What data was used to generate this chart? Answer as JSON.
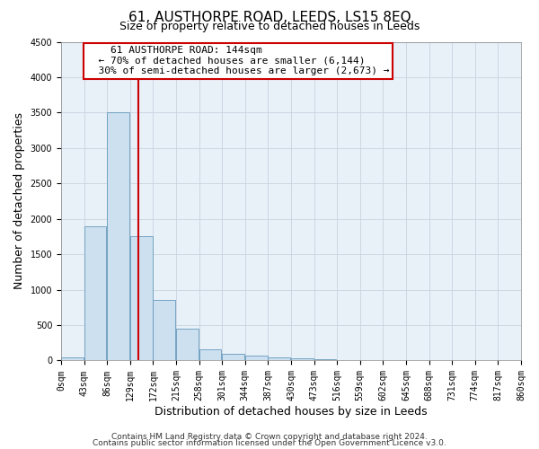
{
  "title": "61, AUSTHORPE ROAD, LEEDS, LS15 8EQ",
  "subtitle": "Size of property relative to detached houses in Leeds",
  "xlabel": "Distribution of detached houses by size in Leeds",
  "ylabel": "Number of detached properties",
  "footer1": "Contains HM Land Registry data © Crown copyright and database right 2024.",
  "footer2": "Contains public sector information licensed under the Open Government Licence v3.0.",
  "property_size": 144,
  "annotation_title": "61 AUSTHORPE ROAD: 144sqm",
  "annotation_line1": "← 70% of detached houses are smaller (6,144)",
  "annotation_line2": "30% of semi-detached houses are larger (2,673) →",
  "bin_edges": [
    0,
    43,
    86,
    129,
    172,
    215,
    258,
    301,
    344,
    387,
    430,
    473,
    516,
    559,
    602,
    645,
    688,
    731,
    774,
    817,
    860
  ],
  "bar_heights": [
    50,
    1900,
    3500,
    1750,
    850,
    450,
    160,
    100,
    70,
    50,
    30,
    20,
    5,
    3,
    2,
    1,
    1,
    0,
    0,
    0
  ],
  "bar_color": "#cce0f0",
  "bar_edgecolor": "#6699bb",
  "redline_color": "#cc0000",
  "annotation_box_edgecolor": "#cc0000",
  "annotation_text_color": "#000000",
  "grid_color": "#c8d4e0",
  "plot_bg_color": "#e8f0f8",
  "fig_bg_color": "#ffffff",
  "ylim": [
    0,
    4500
  ],
  "yticks": [
    0,
    500,
    1000,
    1500,
    2000,
    2500,
    3000,
    3500,
    4000,
    4500
  ],
  "title_fontsize": 11,
  "subtitle_fontsize": 9,
  "xlabel_fontsize": 9,
  "ylabel_fontsize": 9,
  "tick_fontsize": 7,
  "annotation_fontsize": 8,
  "footer_fontsize": 6.5
}
